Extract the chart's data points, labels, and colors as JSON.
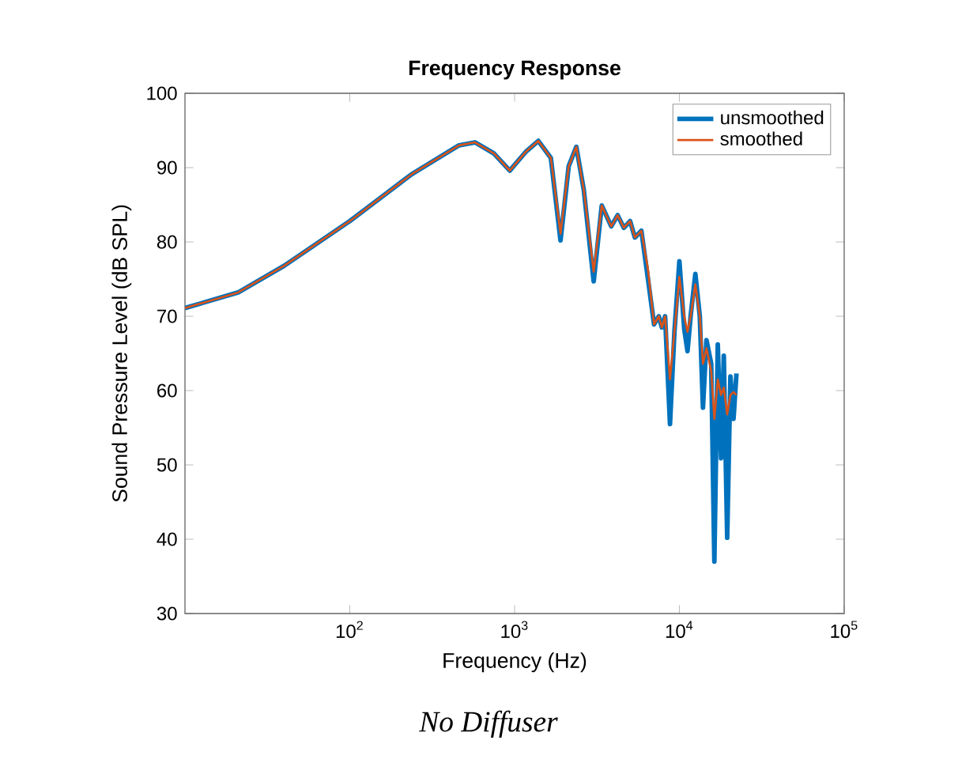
{
  "chart_data": {
    "type": "line",
    "title": "Frequency Response",
    "xlabel": "Frequency (Hz)",
    "ylabel": "Sound Pressure Level (dB SPL)",
    "annotations": [
      "No Diffuser"
    ],
    "log": "x",
    "xlim": [
      10,
      100000
    ],
    "ylim": [
      30,
      100
    ],
    "xticks": [
      {
        "value": 100,
        "label": "10$^{2}$"
      },
      {
        "value": 1000,
        "label": "10$^{3}$"
      },
      {
        "value": 10000,
        "label": "10$^{4}$"
      },
      {
        "value": 100000,
        "label": "10$^{5}$"
      }
    ],
    "yticks": [
      30,
      40,
      50,
      60,
      70,
      80,
      90,
      100
    ],
    "legend": "top right",
    "grid": false,
    "line_style": "solid",
    "marker": "none",
    "series": [
      {
        "name": "unsmoothed",
        "color": "#0072bd",
        "x": [
          10,
          21,
          40,
          100,
          237,
          460,
          575,
          750,
          935,
          1166,
          1393,
          1660,
          1900,
          2130,
          2370,
          2630,
          3020,
          3380,
          3860,
          4220,
          4600,
          5020,
          5370,
          5880,
          6440,
          7020,
          7500,
          7830,
          8190,
          8770,
          9330,
          10000,
          10700,
          11200,
          11700,
          12500,
          13300,
          13900,
          14600,
          15600,
          16300,
          17100,
          17900,
          18600,
          19500,
          20400,
          21300,
          22200
        ],
        "values": [
          71.1,
          73.2,
          76.8,
          82.8,
          89.1,
          93.0,
          93.4,
          91.9,
          89.6,
          92.1,
          93.6,
          91.3,
          80.2,
          90.2,
          92.8,
          87,
          74.7,
          84.9,
          82.1,
          83.6,
          81.9,
          82.8,
          80.6,
          81.5,
          75.1,
          68.9,
          70,
          68.5,
          70,
          55.5,
          67.9,
          77.4,
          68.3,
          65.3,
          70,
          75.7,
          70,
          57.7,
          66.8,
          63.6,
          37,
          66.2,
          50.9,
          64.7,
          40.2,
          61.9,
          56.2,
          62.3
        ]
      },
      {
        "name": "smoothed",
        "color": "#d95319",
        "x": [
          10,
          21,
          40,
          100,
          237,
          460,
          575,
          750,
          935,
          1166,
          1393,
          1660,
          1900,
          2130,
          2370,
          2630,
          3020,
          3380,
          3860,
          4220,
          4600,
          5020,
          5370,
          5880,
          6440,
          7020,
          7500,
          7830,
          8190,
          8770,
          9330,
          10000,
          10700,
          11200,
          11700,
          12500,
          13300,
          13900,
          14600,
          15600,
          16300,
          17100,
          17900,
          18600,
          19500,
          20400,
          21300,
          22200
        ],
        "values": [
          71.1,
          73.2,
          76.8,
          82.8,
          89.1,
          93.0,
          93.4,
          91.9,
          89.6,
          92.1,
          93.6,
          91.3,
          81.1,
          90.2,
          92.8,
          87,
          76,
          84.9,
          82.1,
          83.6,
          81.9,
          82.8,
          80.6,
          81.5,
          76.4,
          68.9,
          70,
          68.5,
          70,
          61.5,
          67.9,
          75.3,
          70,
          67.9,
          70,
          74.3,
          70,
          63.6,
          65.7,
          62.6,
          56.2,
          61.5,
          59.4,
          60.4,
          56.8,
          59.4,
          59.8,
          59.4
        ]
      }
    ]
  }
}
